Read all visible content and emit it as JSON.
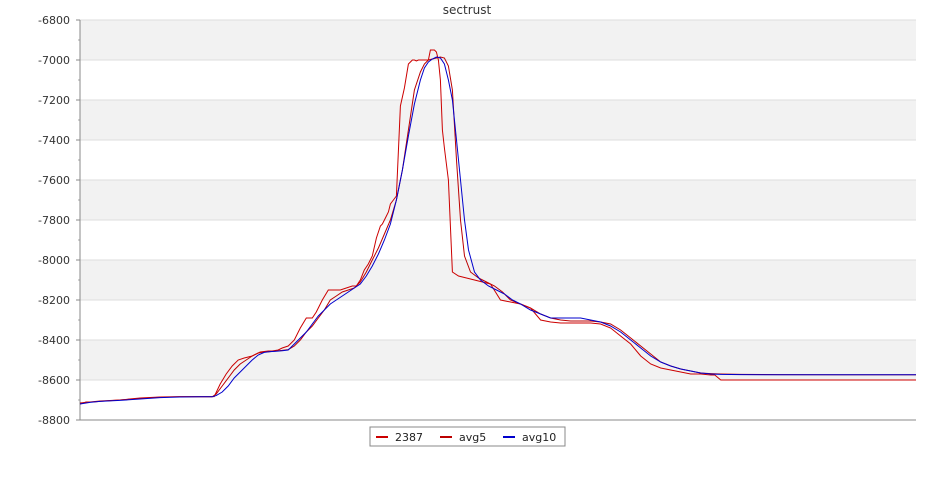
{
  "chart_data": {
    "type": "line",
    "title": "sectrust",
    "xlabel": "",
    "ylabel": "",
    "ylim": [
      -8800,
      -6800
    ],
    "yticks": [
      -6800,
      -7000,
      -7200,
      -7400,
      -7600,
      -7800,
      -8000,
      -8200,
      -8400,
      -8600,
      -8800
    ],
    "x_tick_labels": false,
    "grid": "horizontal alternating bands",
    "legend": "bottom-center",
    "series": [
      {
        "name": "2387",
        "color": "#cc0000",
        "x": [
          0,
          6,
          12,
          25,
          40,
          60,
          80,
          100,
          120,
          130,
          134,
          140,
          146,
          152,
          158,
          164,
          172,
          180,
          188,
          192,
          198,
          202,
          208,
          214,
          220,
          226,
          232,
          236,
          242,
          248,
          254,
          260,
          266,
          272,
          276,
          280,
          284,
          288,
          292,
          296,
          300,
          302,
          304,
          306,
          308,
          310,
          313,
          316,
          320,
          324,
          328,
          332,
          334,
          336,
          338,
          340,
          342,
          344,
          346,
          348,
          350,
          352,
          354,
          356,
          358,
          360,
          362,
          364,
          366,
          368,
          372,
          378,
          386,
          394,
          402,
          410,
          420,
          430,
          440,
          450,
          460,
          470,
          480,
          490,
          500,
          510,
          520,
          530,
          540,
          550,
          560,
          570,
          580,
          590,
          600,
          610,
          620,
          630,
          634,
          640,
          660,
          700,
          760,
          835
        ],
        "y": [
          -8720,
          -8710,
          -8710,
          -8705,
          -8700,
          -8690,
          -8685,
          -8683,
          -8683,
          -8683,
          -8683,
          -8620,
          -8570,
          -8530,
          -8500,
          -8490,
          -8480,
          -8460,
          -8455,
          -8455,
          -8450,
          -8440,
          -8430,
          -8400,
          -8340,
          -8290,
          -8290,
          -8260,
          -8200,
          -8150,
          -8150,
          -8150,
          -8140,
          -8130,
          -8130,
          -8100,
          -8050,
          -8020,
          -7980,
          -7890,
          -7830,
          -7820,
          -7800,
          -7780,
          -7760,
          -7720,
          -7700,
          -7680,
          -7230,
          -7140,
          -7020,
          -7000,
          -7000,
          -7005,
          -7000,
          -7000,
          -7000,
          -7000,
          -7000,
          -7000,
          -6950,
          -6950,
          -6950,
          -6960,
          -7000,
          -7100,
          -7350,
          -7440,
          -7520,
          -7600,
          -8060,
          -8080,
          -8090,
          -8100,
          -8110,
          -8120,
          -8200,
          -8210,
          -8220,
          -8240,
          -8300,
          -8310,
          -8315,
          -8315,
          -8315,
          -8315,
          -8320,
          -8340,
          -8380,
          -8420,
          -8480,
          -8520,
          -8540,
          -8550,
          -8560,
          -8570,
          -8570,
          -8575,
          -8575,
          -8600,
          -8600,
          -8600,
          -8600,
          -8600
        ]
      },
      {
        "name": "avg5",
        "color": "#bb0000",
        "x": [
          0,
          10,
          20,
          40,
          60,
          80,
          100,
          120,
          132,
          136,
          142,
          148,
          154,
          160,
          166,
          172,
          178,
          184,
          190,
          196,
          202,
          208,
          214,
          220,
          226,
          232,
          238,
          244,
          250,
          256,
          262,
          268,
          274,
          280,
          286,
          292,
          298,
          304,
          310,
          316,
          322,
          328,
          334,
          340,
          344,
          348,
          352,
          356,
          360,
          364,
          368,
          372,
          376,
          380,
          384,
          390,
          398,
          406,
          414,
          422,
          430,
          440,
          450,
          460,
          470,
          480,
          490,
          500,
          510,
          520,
          530,
          540,
          550,
          560,
          570,
          580,
          590,
          600,
          610,
          620,
          630,
          640,
          660,
          700,
          760,
          835
        ],
        "y": [
          -8715,
          -8710,
          -8705,
          -8700,
          -8692,
          -8686,
          -8684,
          -8684,
          -8684,
          -8670,
          -8630,
          -8590,
          -8550,
          -8520,
          -8500,
          -8480,
          -8465,
          -8460,
          -8458,
          -8455,
          -8452,
          -8448,
          -8430,
          -8400,
          -8360,
          -8330,
          -8290,
          -8250,
          -8200,
          -8180,
          -8160,
          -8150,
          -8140,
          -8110,
          -8060,
          -8000,
          -7940,
          -7870,
          -7800,
          -7700,
          -7550,
          -7350,
          -7150,
          -7060,
          -7020,
          -7000,
          -6995,
          -6990,
          -6985,
          -6990,
          -7030,
          -7150,
          -7500,
          -7800,
          -7980,
          -8060,
          -8090,
          -8110,
          -8130,
          -8160,
          -8200,
          -8220,
          -8240,
          -8270,
          -8290,
          -8300,
          -8305,
          -8305,
          -8305,
          -8310,
          -8320,
          -8350,
          -8390,
          -8430,
          -8470,
          -8510,
          -8530,
          -8545,
          -8555,
          -8565,
          -8568,
          -8570,
          -8572,
          -8573,
          -8574,
          -8574
        ]
      },
      {
        "name": "avg10",
        "color": "#0000cc",
        "x": [
          0,
          10,
          20,
          40,
          60,
          80,
          100,
          120,
          132,
          136,
          142,
          148,
          154,
          160,
          166,
          172,
          178,
          184,
          190,
          196,
          202,
          208,
          214,
          220,
          226,
          232,
          238,
          244,
          250,
          256,
          262,
          268,
          274,
          280,
          286,
          292,
          298,
          304,
          310,
          316,
          322,
          328,
          334,
          340,
          344,
          348,
          352,
          356,
          360,
          364,
          368,
          372,
          376,
          380,
          384,
          388,
          394,
          400,
          408,
          416,
          424,
          432,
          440,
          450,
          460,
          470,
          480,
          490,
          500,
          510,
          520,
          530,
          540,
          550,
          560,
          570,
          580,
          590,
          600,
          610,
          620,
          630,
          640,
          660,
          700,
          760,
          835
        ],
        "y": [
          -8720,
          -8712,
          -8707,
          -8702,
          -8695,
          -8688,
          -8685,
          -8684,
          -8684,
          -8678,
          -8660,
          -8630,
          -8590,
          -8560,
          -8530,
          -8500,
          -8475,
          -8462,
          -8458,
          -8456,
          -8454,
          -8450,
          -8420,
          -8390,
          -8360,
          -8320,
          -8280,
          -8250,
          -8220,
          -8200,
          -8180,
          -8160,
          -8140,
          -8120,
          -8080,
          -8030,
          -7970,
          -7900,
          -7820,
          -7700,
          -7550,
          -7380,
          -7220,
          -7100,
          -7040,
          -7010,
          -6995,
          -6985,
          -6990,
          -7020,
          -7100,
          -7200,
          -7400,
          -7600,
          -7800,
          -7950,
          -8060,
          -8100,
          -8130,
          -8150,
          -8170,
          -8200,
          -8220,
          -8250,
          -8270,
          -8290,
          -8290,
          -8290,
          -8290,
          -8300,
          -8310,
          -8330,
          -8360,
          -8400,
          -8440,
          -8480,
          -8510,
          -8530,
          -8545,
          -8555,
          -8565,
          -8570,
          -8572,
          -8573,
          -8574,
          -8574,
          -8574
        ]
      }
    ]
  }
}
